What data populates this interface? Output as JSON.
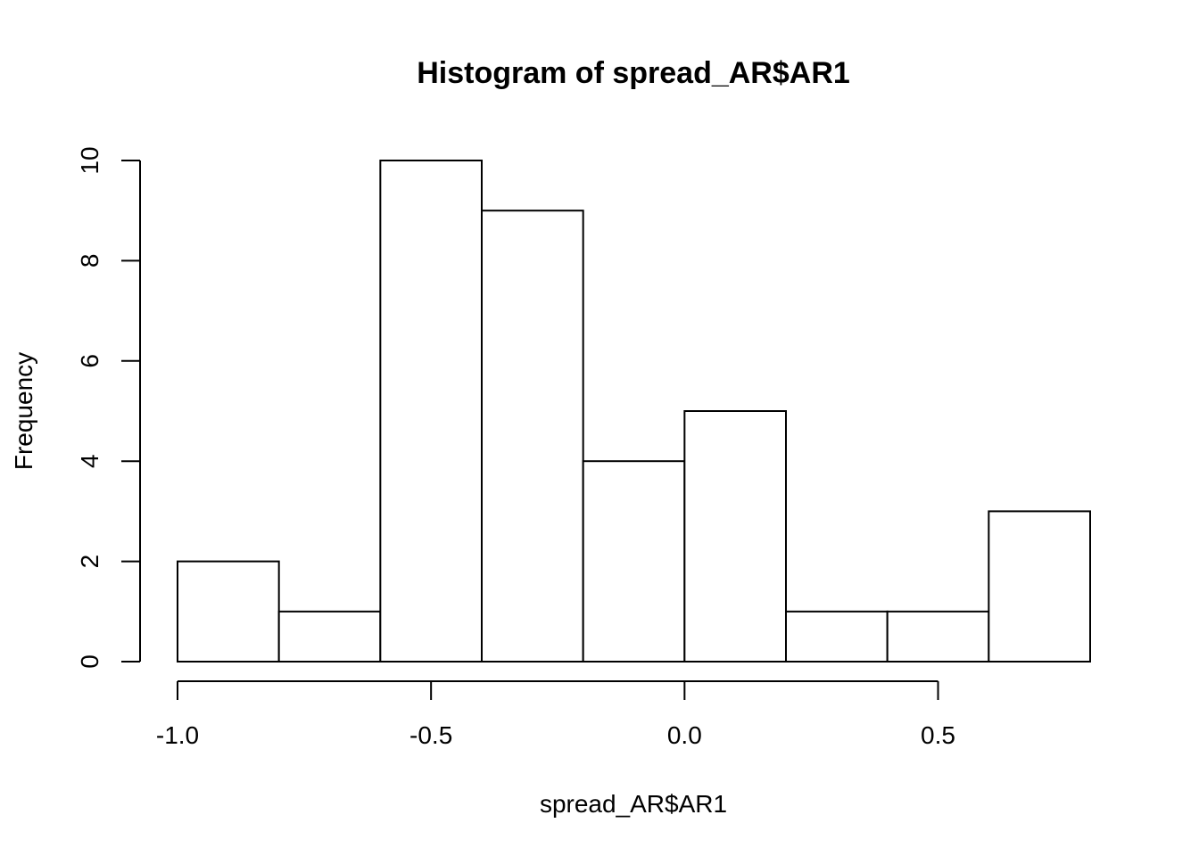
{
  "chart_data": {
    "type": "bar",
    "subtype": "histogram",
    "title": "Histogram of spread_AR$AR1",
    "xlabel": "spread_AR$AR1",
    "ylabel": "Frequency",
    "bins": [
      {
        "start": -1.0,
        "end": -0.8,
        "count": 2
      },
      {
        "start": -0.8,
        "end": -0.6,
        "count": 1
      },
      {
        "start": -0.6,
        "end": -0.4,
        "count": 10
      },
      {
        "start": -0.4,
        "end": -0.2,
        "count": 9
      },
      {
        "start": -0.2,
        "end": 0.0,
        "count": 4
      },
      {
        "start": 0.0,
        "end": 0.2,
        "count": 5
      },
      {
        "start": 0.2,
        "end": 0.4,
        "count": 1
      },
      {
        "start": 0.4,
        "end": 0.6,
        "count": 1
      },
      {
        "start": 0.6,
        "end": 0.8,
        "count": 3
      }
    ],
    "xlim": [
      -1.0,
      0.8
    ],
    "ylim": [
      0,
      10
    ],
    "x_ticks": [
      {
        "value": -1.0,
        "label": "-1.0"
      },
      {
        "value": -0.5,
        "label": "-0.5"
      },
      {
        "value": 0.0,
        "label": "0.0"
      },
      {
        "value": 0.5,
        "label": "0.5"
      }
    ],
    "y_ticks": [
      {
        "value": 0,
        "label": "0"
      },
      {
        "value": 2,
        "label": "2"
      },
      {
        "value": 4,
        "label": "4"
      },
      {
        "value": 6,
        "label": "6"
      },
      {
        "value": 8,
        "label": "8"
      },
      {
        "value": 10,
        "label": "10"
      }
    ],
    "grid": false,
    "bar_fill": "#ffffff",
    "bar_stroke": "#000000"
  }
}
